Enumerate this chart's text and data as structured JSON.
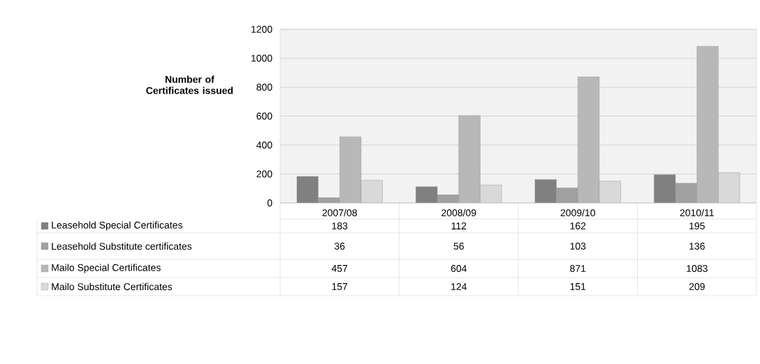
{
  "chart_data": {
    "type": "bar",
    "ylabel": "Number of Certificates issued",
    "categories": [
      "2007/08",
      "2008/09",
      "2009/10",
      "2010/11"
    ],
    "series": [
      {
        "name": "Leasehold Special Certificates",
        "color": "#808080",
        "values": [
          183,
          112,
          162,
          195
        ]
      },
      {
        "name": "Leasehold Substitute certificates",
        "color": "#a0a0a0",
        "values": [
          36,
          56,
          103,
          136
        ]
      },
      {
        "name": "Mailo Special Certificates",
        "color": "#b8b8b8",
        "values": [
          457,
          604,
          871,
          1083
        ]
      },
      {
        "name": "Mailo Substitute Certificates",
        "color": "#d9d9d9",
        "values": [
          157,
          124,
          151,
          209
        ]
      }
    ],
    "ylim": [
      0,
      1200
    ],
    "yticks": [
      0,
      200,
      400,
      600,
      800,
      1000,
      1200
    ],
    "grid": "y",
    "legend": "bottom",
    "data_labels": true
  }
}
